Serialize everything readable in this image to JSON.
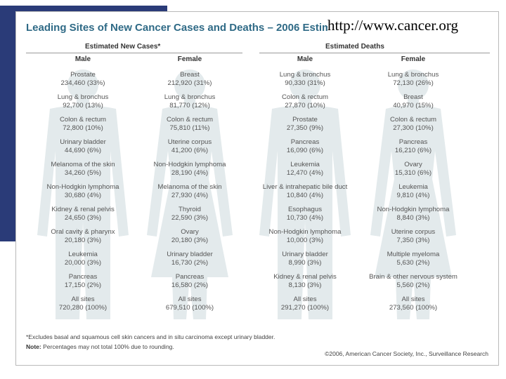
{
  "slide": {
    "url": "http://www.cancer.org"
  },
  "figure": {
    "title": "Leading Sites of New Cancer Cases and Deaths – 2006 Estimates",
    "new_cases_heading": "Estimated New Cases*",
    "deaths_heading": "Estimated Deaths",
    "columns": [
      {
        "header": "Male",
        "entries": [
          {
            "site": "Prostate",
            "value": "234,460 (33%)"
          },
          {
            "site": "Lung & bronchus",
            "value": "92,700 (13%)"
          },
          {
            "site": "Colon & rectum",
            "value": "72,800 (10%)"
          },
          {
            "site": "Urinary bladder",
            "value": "44,690 (6%)"
          },
          {
            "site": "Melanoma of the skin",
            "value": "34,260 (5%)"
          },
          {
            "site": "Non-Hodgkin lymphoma",
            "value": "30,680 (4%)"
          },
          {
            "site": "Kidney & renal pelvis",
            "value": "24,650 (3%)"
          },
          {
            "site": "Oral cavity & pharynx",
            "value": "20,180 (3%)"
          },
          {
            "site": "Leukemia",
            "value": "20,000 (3%)"
          },
          {
            "site": "Pancreas",
            "value": "17,150 (2%)"
          },
          {
            "site": "All sites",
            "value": "720,280 (100%)"
          }
        ]
      },
      {
        "header": "Female",
        "entries": [
          {
            "site": "Breast",
            "value": "212,920 (31%)"
          },
          {
            "site": "Lung & bronchus",
            "value": "81,770 (12%)"
          },
          {
            "site": "Colon & rectum",
            "value": "75,810 (11%)"
          },
          {
            "site": "Uterine corpus",
            "value": "41,200 (6%)"
          },
          {
            "site": "Non-Hodgkin lymphoma",
            "value": "28,190 (4%)"
          },
          {
            "site": "Melanoma of the skin",
            "value": "27,930 (4%)"
          },
          {
            "site": "Thyroid",
            "value": "22,590 (3%)"
          },
          {
            "site": "Ovary",
            "value": "20,180 (3%)"
          },
          {
            "site": "Urinary bladder",
            "value": "16,730 (2%)"
          },
          {
            "site": "Pancreas",
            "value": "16,580 (2%)"
          },
          {
            "site": "All sites",
            "value": "679,510 (100%)"
          }
        ]
      },
      {
        "header": "Male",
        "entries": [
          {
            "site": "Lung & bronchus",
            "value": "90,330 (31%)"
          },
          {
            "site": "Colon & rectum",
            "value": "27,870 (10%)"
          },
          {
            "site": "Prostate",
            "value": "27,350 (9%)"
          },
          {
            "site": "Pancreas",
            "value": "16,090 (6%)"
          },
          {
            "site": "Leukemia",
            "value": "12,470 (4%)"
          },
          {
            "site": "Liver & intrahepatic bile duct",
            "value": "10,840 (4%)"
          },
          {
            "site": "Esophagus",
            "value": "10,730 (4%)"
          },
          {
            "site": "Non-Hodgkin lymphoma",
            "value": "10,000 (3%)"
          },
          {
            "site": "Urinary bladder",
            "value": "8,990 (3%)"
          },
          {
            "site": "Kidney & renal pelvis",
            "value": "8,130 (3%)"
          },
          {
            "site": "All sites",
            "value": "291,270 (100%)"
          }
        ]
      },
      {
        "header": "Female",
        "entries": [
          {
            "site": "Lung & bronchus",
            "value": "72,130 (26%)"
          },
          {
            "site": "Breast",
            "value": "40,970 (15%)"
          },
          {
            "site": "Colon & rectum",
            "value": "27,300 (10%)"
          },
          {
            "site": "Pancreas",
            "value": "16,210 (6%)"
          },
          {
            "site": "Ovary",
            "value": "15,310 (6%)"
          },
          {
            "site": "Leukemia",
            "value": "9,810 (4%)"
          },
          {
            "site": "Non-Hodgkin lymphoma",
            "value": "8,840 (3%)"
          },
          {
            "site": "Uterine corpus",
            "value": "7,350 (3%)"
          },
          {
            "site": "Multiple myeloma",
            "value": "5,630 (2%)"
          },
          {
            "site": "Brain & other nervous system",
            "value": "5,560 (2%)"
          },
          {
            "site": "All sites",
            "value": "273,560 (100%)"
          }
        ]
      }
    ],
    "footnote": "*Excludes basal and squamous cell skin cancers and in situ carcinoma except urinary bladder.",
    "note_label": "Note:",
    "note_text": "Percentages may not total 100% due to rounding.",
    "copyright": "©2006, American Cancer Society, Inc., Surveillance Research"
  },
  "colors": {
    "slide_bar": "#2a3b78",
    "title": "#2f6a86",
    "silhouette": "#e3eaec"
  }
}
